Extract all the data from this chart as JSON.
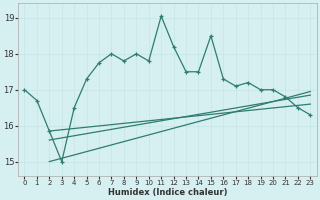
{
  "xlabel": "Humidex (Indice chaleur)",
  "bg_color": "#d6eff0",
  "grid_color": "#c8e6e8",
  "line_color": "#2e7d70",
  "xlim": [
    -0.5,
    23.5
  ],
  "ylim": [
    14.6,
    19.4
  ],
  "yticks": [
    15,
    16,
    17,
    18,
    19
  ],
  "xticks": [
    0,
    1,
    2,
    3,
    4,
    5,
    6,
    7,
    8,
    9,
    10,
    11,
    12,
    13,
    14,
    15,
    16,
    17,
    18,
    19,
    20,
    21,
    22,
    23
  ],
  "main_x": [
    0,
    1,
    2,
    3,
    4,
    5,
    6,
    7,
    8,
    9,
    10,
    11,
    12,
    13,
    14,
    15,
    16,
    17,
    18,
    19,
    20,
    21,
    22,
    23
  ],
  "main_y": [
    17.0,
    16.7,
    15.85,
    15.0,
    16.5,
    17.3,
    17.75,
    18.0,
    17.8,
    18.0,
    17.8,
    19.05,
    18.2,
    17.5,
    17.5,
    18.5,
    17.3,
    17.1,
    17.2,
    17.0,
    17.0,
    16.8,
    16.5,
    16.3
  ],
  "line1_x": [
    2,
    23
  ],
  "line1_y": [
    15.85,
    16.6
  ],
  "line2_x": [
    2,
    23
  ],
  "line2_y": [
    15.6,
    16.85
  ],
  "line3_x": [
    2,
    23
  ],
  "line3_y": [
    15.0,
    16.95
  ]
}
